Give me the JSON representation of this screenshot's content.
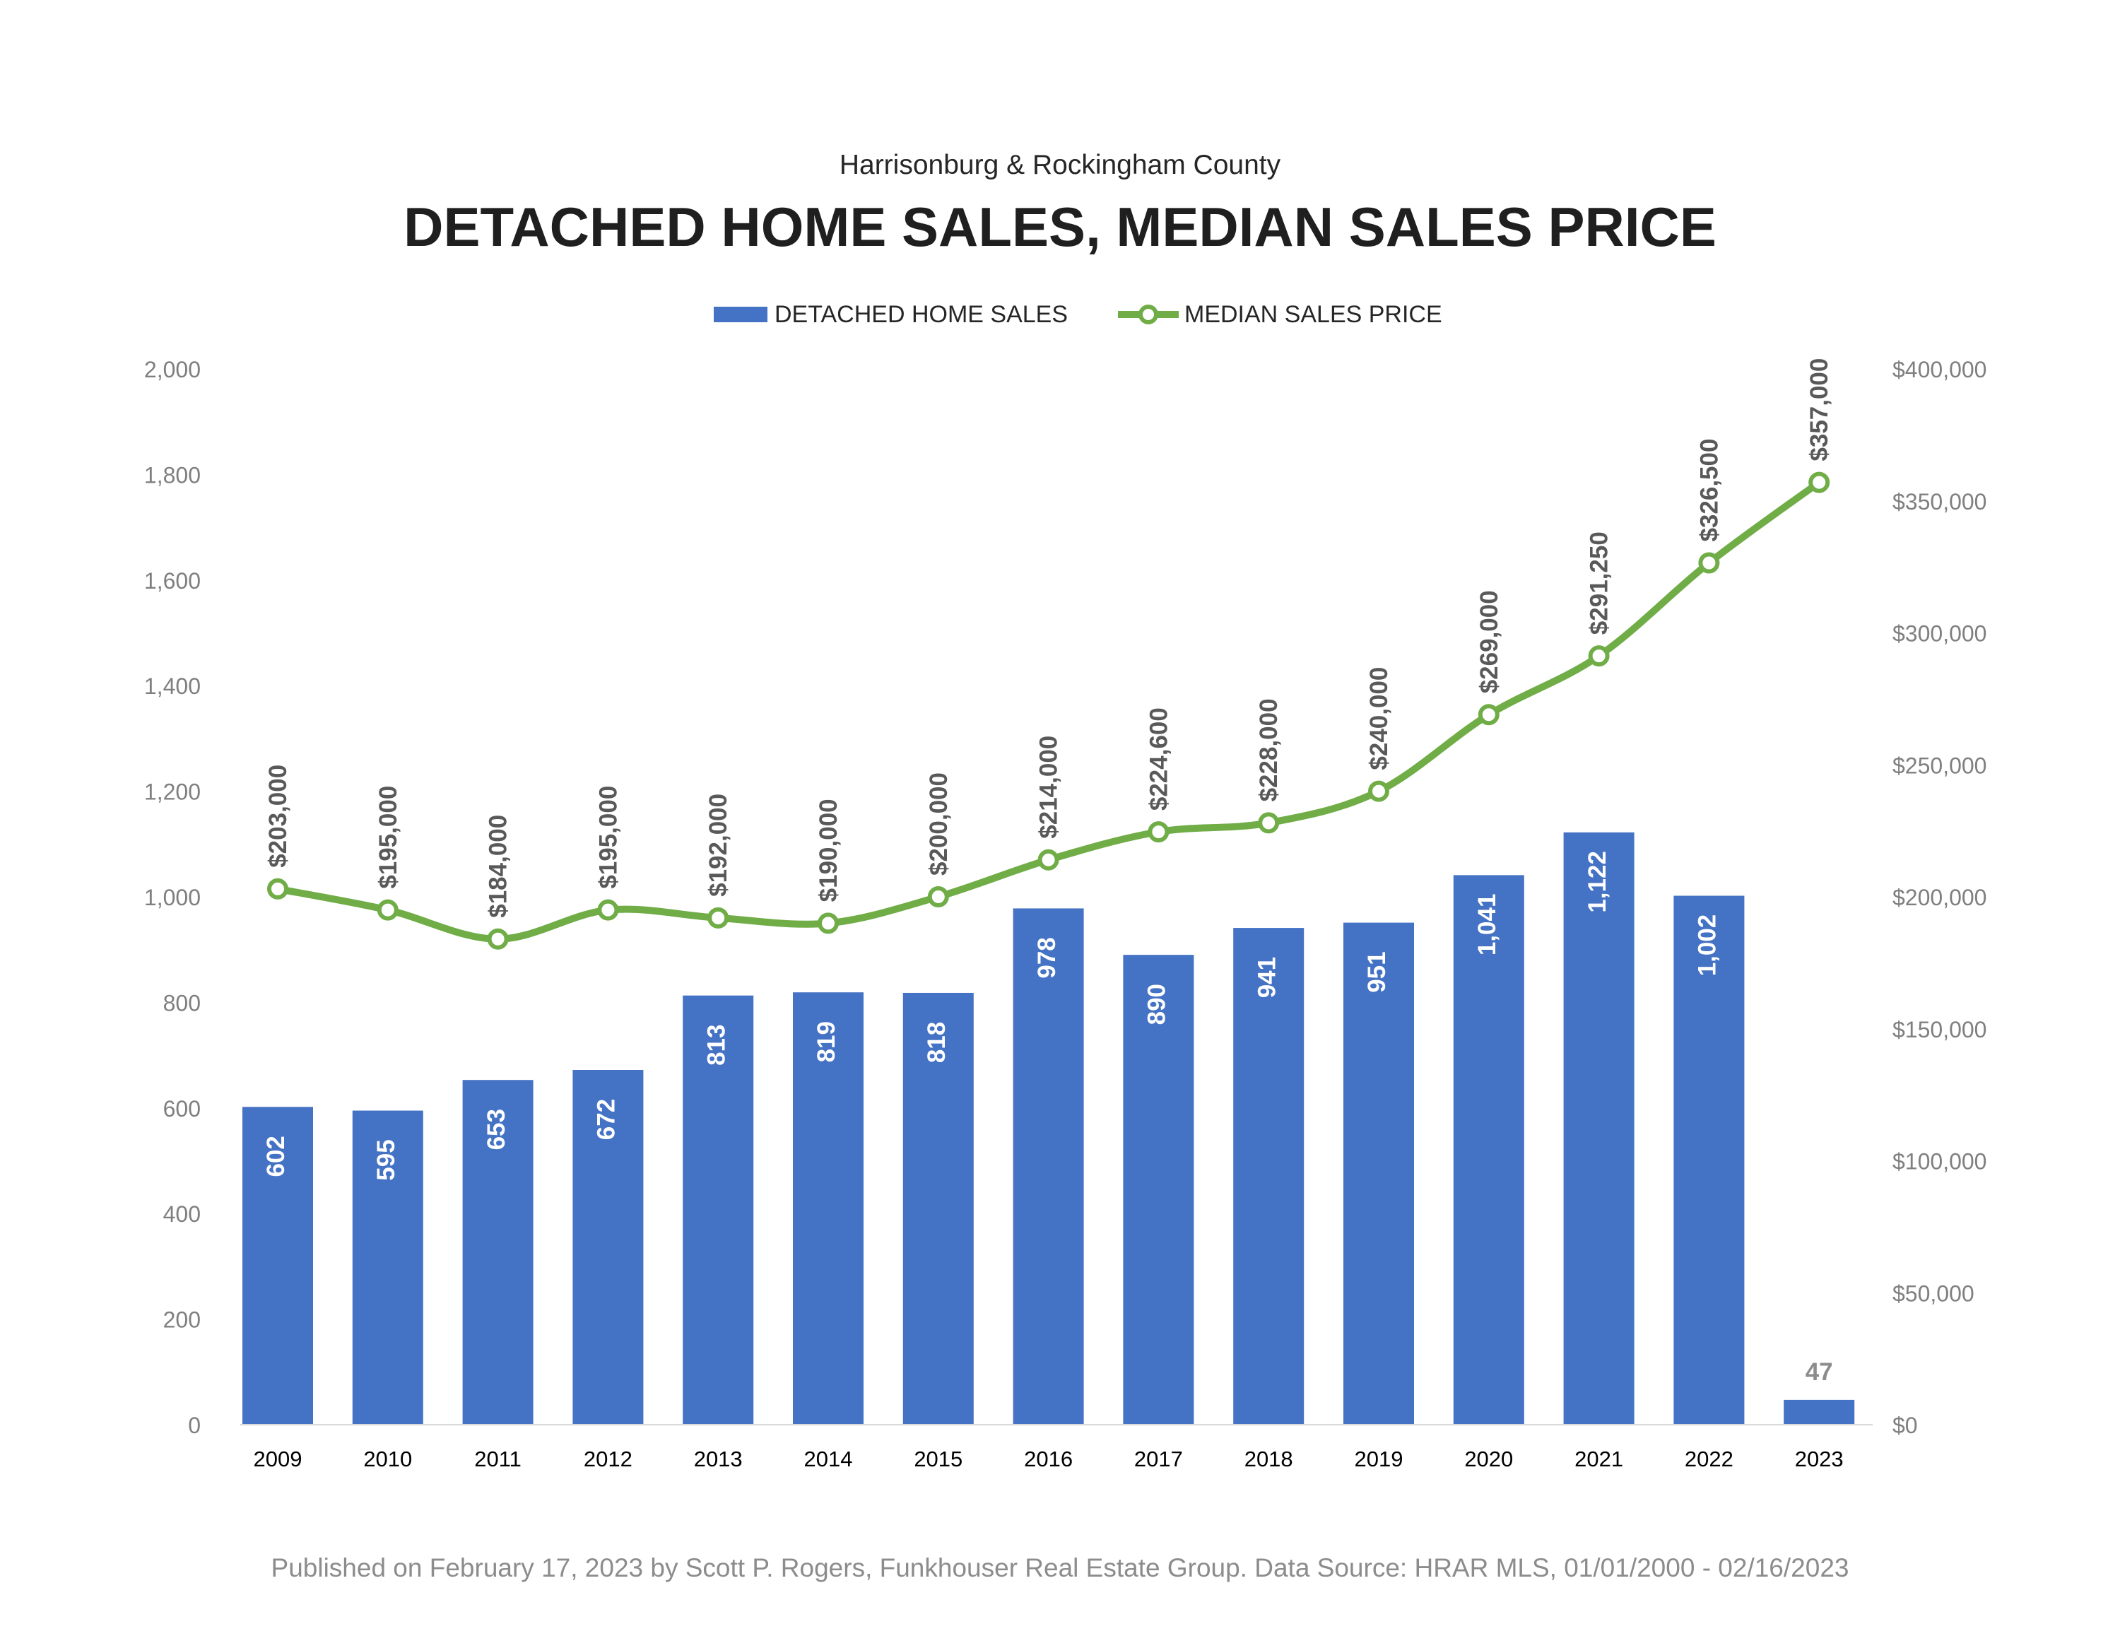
{
  "header": {
    "subtitle": "Harrisonburg & Rockingham County",
    "title": "DETACHED HOME SALES, MEDIAN SALES PRICE"
  },
  "legend": {
    "bar_label": "DETACHED HOME SALES",
    "line_label": "MEDIAN SALES PRICE"
  },
  "footer": {
    "text": "Published on February 17, 2023 by Scott P. Rogers, Funkhouser Real Estate Group. Data Source: HRAR MLS, 01/01/2000 - 02/16/2023"
  },
  "colors": {
    "bar": "#4472c4",
    "line": "#70ad47",
    "axis_text": "#7f7f7f",
    "category_text": "#000000",
    "bar_label_inside": "#ffffff",
    "bar_label_outside": "#8c8c8c",
    "line_label": "#595959"
  },
  "chart_data": {
    "type": "bar+line",
    "categories": [
      "2009",
      "2010",
      "2011",
      "2012",
      "2013",
      "2014",
      "2015",
      "2016",
      "2017",
      "2018",
      "2019",
      "2020",
      "2021",
      "2022",
      "2023"
    ],
    "series": [
      {
        "name": "DETACHED HOME SALES",
        "type": "bar",
        "axis": "left",
        "values": [
          602,
          595,
          653,
          672,
          813,
          819,
          818,
          978,
          890,
          941,
          951,
          1041,
          1122,
          1002,
          47
        ],
        "labels": [
          "602",
          "595",
          "653",
          "672",
          "813",
          "819",
          "818",
          "978",
          "890",
          "941",
          "951",
          "1,041",
          "1,122",
          "1,002",
          "47"
        ]
      },
      {
        "name": "MEDIAN SALES PRICE",
        "type": "line",
        "axis": "right",
        "values": [
          203000,
          195000,
          184000,
          195000,
          192000,
          190000,
          200000,
          214000,
          224600,
          228000,
          240000,
          269000,
          291250,
          326500,
          357000
        ],
        "labels": [
          "$203,000",
          "$195,000",
          "$184,000",
          "$195,000",
          "$192,000",
          "$190,000",
          "$200,000",
          "$214,000",
          "$224,600",
          "$228,000",
          "$240,000",
          "$269,000",
          "$291,250",
          "$326,500",
          "$357,000"
        ]
      }
    ],
    "y_left": {
      "min": 0,
      "max": 2000,
      "ticks": [
        "0",
        "200",
        "400",
        "600",
        "800",
        "1,000",
        "1,200",
        "1,400",
        "1,600",
        "1,800",
        "2,000"
      ]
    },
    "y_right": {
      "min": 0,
      "max": 400000,
      "ticks": [
        "$0",
        "$50,000",
        "$100,000",
        "$150,000",
        "$200,000",
        "$250,000",
        "$300,000",
        "$350,000",
        "$400,000"
      ]
    },
    "grid": false,
    "legend_position": "top"
  }
}
